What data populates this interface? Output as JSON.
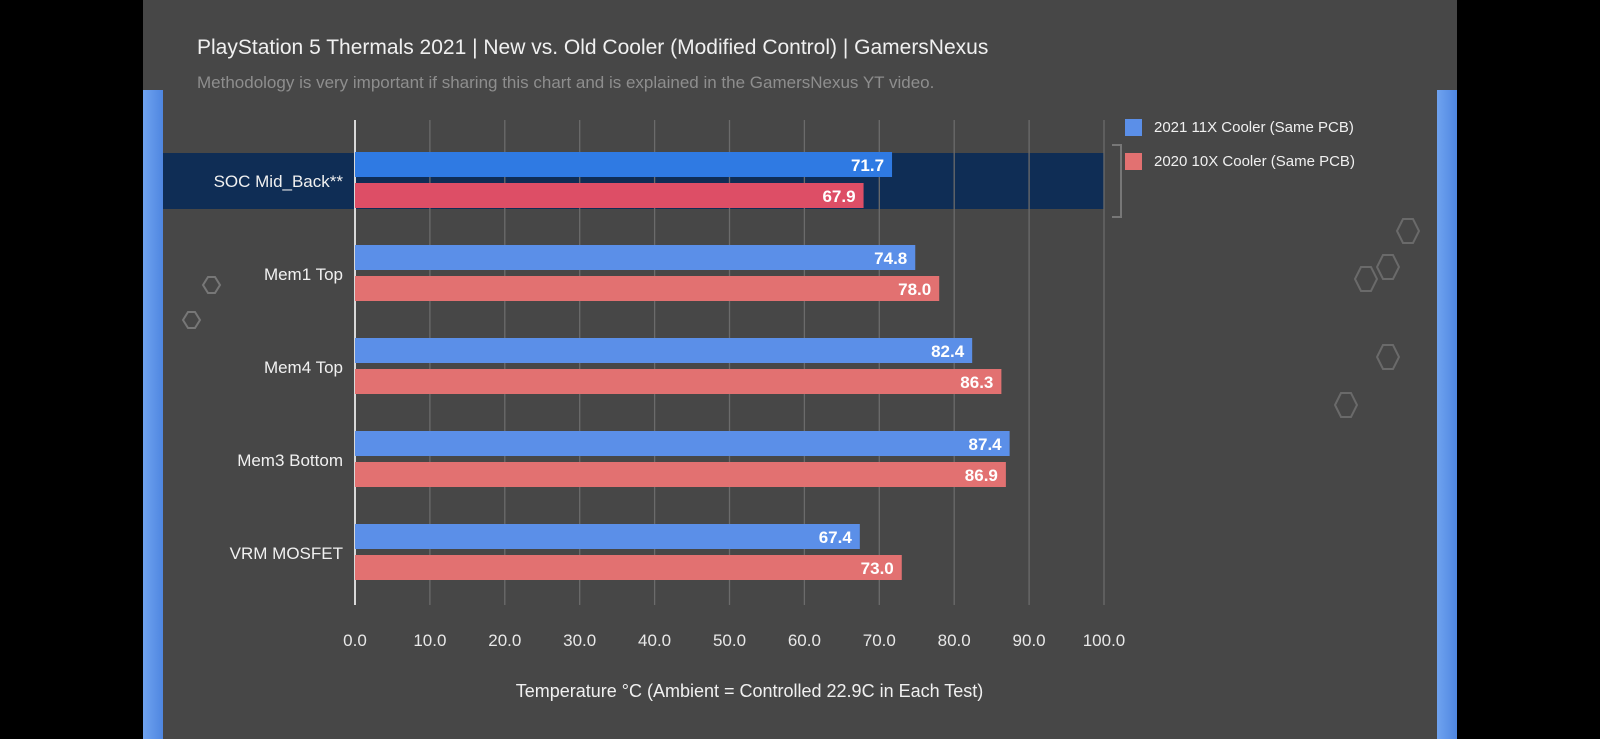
{
  "header": {
    "title": "PlayStation 5 Thermals 2021 | New vs. Old Cooler (Modified Control) | GamersNexus",
    "subtitle": "Methodology is very important if sharing this chart and is explained in the GamersNexus YT video."
  },
  "colors": {
    "panel_bg": "#474747",
    "series_new": "#5b8fe8",
    "series_new_highlight": "#2f7ae3",
    "series_old": "#e27171",
    "series_old_highlight": "#dd4e66",
    "highlight_band": "#0f2d55",
    "accent_edge": "#5b93ea"
  },
  "chart_data": {
    "type": "bar",
    "orientation": "horizontal",
    "title": "PlayStation 5 Thermals 2021 | New vs. Old Cooler (Modified Control) | GamersNexus",
    "subtitle": "Methodology is very important if sharing this chart and is explained in the GamersNexus YT video.",
    "categories": [
      "SOC Mid_Back**",
      "Mem1 Top",
      "Mem4 Top",
      "Mem3 Bottom",
      "VRM MOSFET"
    ],
    "series": [
      {
        "name": "2021 11X Cooler (Same PCB)",
        "values": [
          71.7,
          74.8,
          82.4,
          87.4,
          67.4
        ]
      },
      {
        "name": "2020 10X Cooler (Same PCB)",
        "values": [
          67.9,
          78.0,
          86.3,
          86.9,
          73.0
        ]
      }
    ],
    "xlabel": "Temperature °C (Ambient = Controlled 22.9C in Each Test)",
    "ylabel": "",
    "xlim": [
      0,
      100
    ],
    "xticks": [
      "0.0",
      "10.0",
      "20.0",
      "30.0",
      "40.0",
      "50.0",
      "60.0",
      "70.0",
      "80.0",
      "90.0",
      "100.0"
    ],
    "grid": true,
    "legend_position": "top-right",
    "highlighted_category": "SOC Mid_Back**"
  }
}
